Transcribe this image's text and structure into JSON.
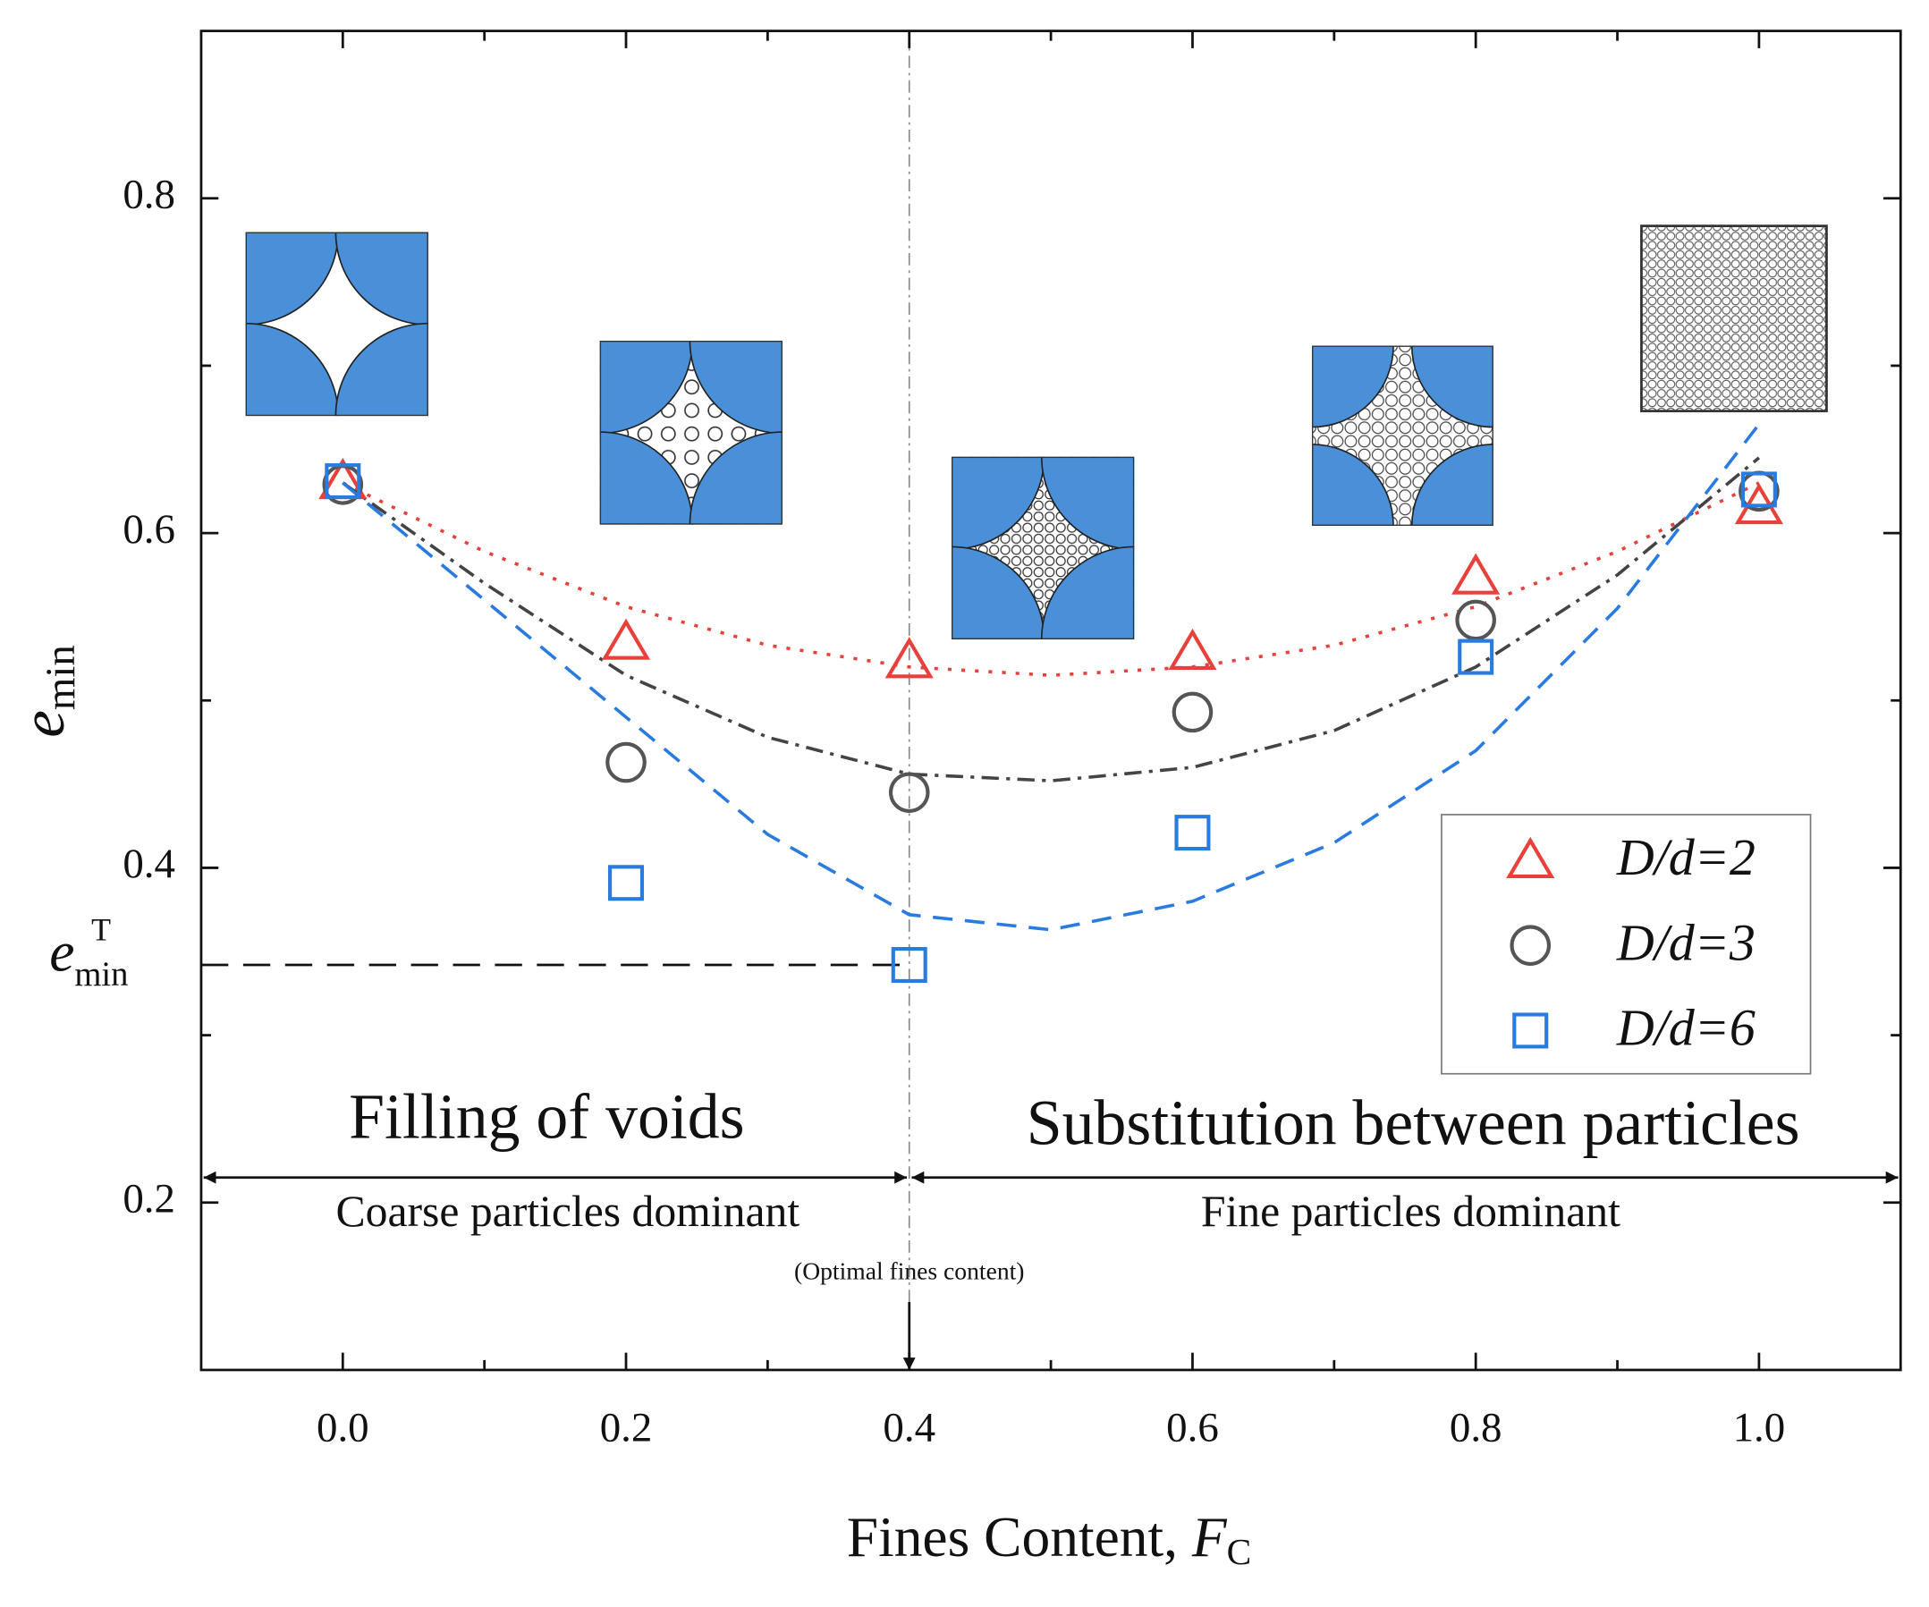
{
  "chart_data": {
    "type": "scatter",
    "x_label": {
      "main": "Fines Content, ",
      "italic": "F",
      "sub": "C"
    },
    "y_label": {
      "main": "e",
      "sub": "min"
    },
    "xlim": [
      -0.1,
      1.1
    ],
    "ylim": [
      0.1,
      0.9
    ],
    "xticks": [
      {
        "value": 0,
        "label": "0.0"
      },
      0.2,
      0.4,
      0.6,
      0.8,
      {
        "value": 1,
        "label": "1.0"
      }
    ],
    "xminor": [
      0.1,
      0.3,
      0.5,
      0.7,
      0.9
    ],
    "yticks": [
      0.2,
      0.4,
      0.6,
      0.8
    ],
    "yminor": [
      0.3,
      0.5,
      0.7
    ],
    "x": [
      0,
      0.2,
      0.4,
      0.6,
      0.8,
      1
    ],
    "series": [
      {
        "name": "D/d=2",
        "color": "#e8403a",
        "marker": "triangle",
        "values": [
          0.631,
          0.535,
          0.524,
          0.529,
          0.574,
          0.616
        ]
      },
      {
        "name": "D/d=3",
        "color": "#555555",
        "marker": "circle",
        "values": [
          0.629,
          0.463,
          0.445,
          0.493,
          0.548,
          0.625
        ]
      },
      {
        "name": "D/d=6",
        "color": "#2a7be0",
        "marker": "square",
        "values": [
          0.631,
          0.391,
          0.342,
          0.421,
          0.526,
          0.626
        ]
      }
    ],
    "fits": [
      {
        "color": "#e8403a",
        "dash": "dotted",
        "x": [
          0,
          0.1,
          0.2,
          0.3,
          0.4,
          0.5,
          0.6,
          0.7,
          0.8,
          0.9,
          1
        ],
        "values": [
          0.63,
          0.589,
          0.556,
          0.533,
          0.52,
          0.515,
          0.52,
          0.533,
          0.556,
          0.589,
          0.63
        ]
      },
      {
        "color": "#444444",
        "dash": "dashdot",
        "x": [
          0,
          0.1,
          0.2,
          0.3,
          0.4,
          0.5,
          0.6,
          0.7,
          0.8,
          0.9,
          1
        ],
        "values": [
          0.63,
          0.57,
          0.515,
          0.478,
          0.456,
          0.452,
          0.46,
          0.482,
          0.52,
          0.575,
          0.645
        ]
      },
      {
        "color": "#2a7be0",
        "dash": "dashed",
        "x": [
          0,
          0.1,
          0.2,
          0.3,
          0.4,
          0.5,
          0.6,
          0.7,
          0.8,
          0.9,
          1
        ],
        "values": [
          0.63,
          0.56,
          0.49,
          0.42,
          0.372,
          0.363,
          0.38,
          0.415,
          0.47,
          0.555,
          0.665
        ]
      }
    ],
    "legend": "lower right",
    "optimal_fc": 0.4,
    "e_min_T": {
      "value": 0.342,
      "main": "e",
      "sub": "min",
      "sup": "T"
    },
    "arrow_y": 0.215,
    "annotations": {
      "left_title": "Filling of voids",
      "right_title": "Substitution between particles",
      "left_sub": "Coarse particles dominant",
      "right_sub": "Fine particles dominant",
      "optimal": "(Optimal fines content)"
    }
  }
}
